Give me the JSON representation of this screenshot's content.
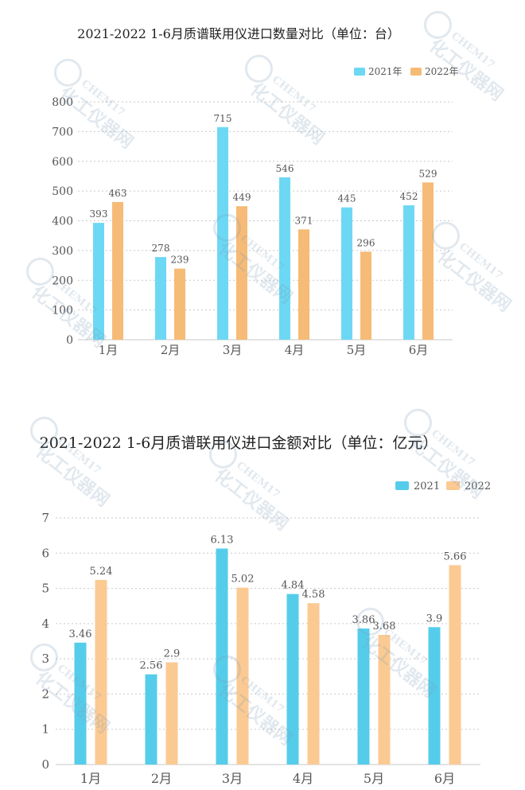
{
  "chart_data": [
    {
      "type": "bar",
      "title": "2021-2022 1-6月质谱联用仪进口数量对比（单位：台）",
      "categories": [
        "1月",
        "2月",
        "3月",
        "4月",
        "5月",
        "6月"
      ],
      "series": [
        {
          "name": "2021年",
          "color": "#6dd8f4",
          "values": [
            393,
            278,
            715,
            546,
            445,
            452
          ]
        },
        {
          "name": "2022年",
          "color": "#f6bb76",
          "values": [
            463,
            239,
            449,
            371,
            296,
            529
          ]
        }
      ],
      "yticks": [
        "0",
        "100",
        "200",
        "300",
        "400",
        "500",
        "600",
        "700",
        "800"
      ],
      "ylim": [
        0,
        800
      ],
      "legend": "top-right"
    },
    {
      "type": "bar",
      "title": "2021-2022 1-6月质谱联用仪进口金额对比（单位：亿元）",
      "categories": [
        "1月",
        "2月",
        "3月",
        "4月",
        "5月",
        "6月"
      ],
      "series": [
        {
          "name": "2021",
          "color": "#55cdea",
          "values": [
            3.46,
            2.56,
            6.13,
            4.84,
            3.86,
            3.9
          ]
        },
        {
          "name": "2022",
          "color": "#fbca93",
          "values": [
            5.24,
            2.9,
            5.02,
            4.58,
            3.68,
            5.66
          ]
        }
      ],
      "yticks": [
        "0",
        "1",
        "2",
        "3",
        "4",
        "5",
        "6",
        "7"
      ],
      "ylim": [
        0,
        7
      ],
      "legend": "top-right"
    }
  ],
  "watermark": {
    "text": "化工仪器网",
    "brand": "CHEM17"
  }
}
